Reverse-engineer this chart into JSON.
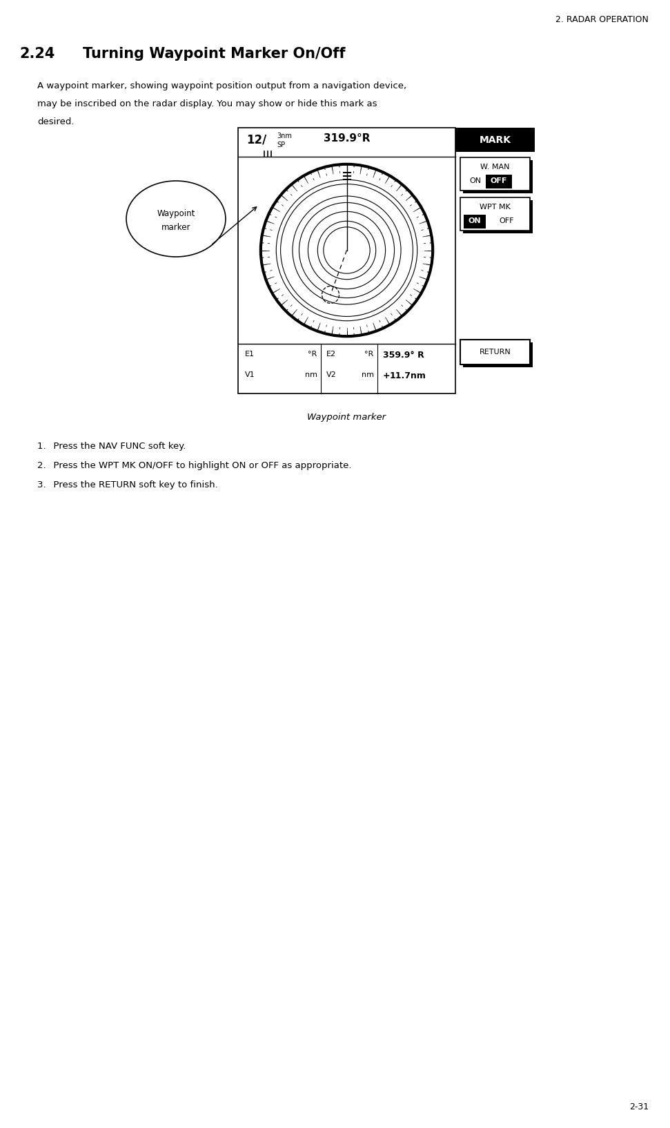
{
  "page_header": "2. RADAR OPERATION",
  "section_num": "2.24",
  "section_title": "Turning Waypoint Marker On/Off",
  "body_text_lines": [
    "A waypoint marker, showing waypoint position output from a navigation device,",
    "may be inscribed on the radar display. You may show or hide this mark as",
    "desired."
  ],
  "caption": "Waypoint marker",
  "steps": [
    "Press the NAV FUNC soft key.",
    "Press the WPT MK ON/OFF to highlight ON or OFF as appropriate.",
    "Press the RETURN soft key to finish."
  ],
  "radar": {
    "top_left_big": "12/",
    "top_left_small1": "3nm",
    "top_left_small2": "SP",
    "top_center": "319.9°R",
    "mark_header": "MARK",
    "btn1_label": "W. MAN",
    "btn1_on": "ON",
    "btn1_off": "OFF",
    "btn1_highlighted": "OFF",
    "btn2_label": "WPT MK",
    "btn2_on": "ON",
    "btn2_off": "OFF",
    "btn2_highlighted": "ON",
    "return_label": "RETURN",
    "status_col1_r1": "E1",
    "status_col1_r2": "V1",
    "status_col1_r1b": "°R",
    "status_col1_r2b": "nm",
    "status_col2_r1": "E2",
    "status_col2_r2": "V2",
    "status_col2_r1b": "°R",
    "status_col2_r2b": "nm",
    "status_col3_r1": "359.9° R",
    "status_col3_r2": "+",
    "status_col3_r2b": "11.7nm"
  },
  "waypoint_callout": "Waypoint\nmarker",
  "bg_color": "#ffffff",
  "text_color": "#000000",
  "page_num": "2-31"
}
